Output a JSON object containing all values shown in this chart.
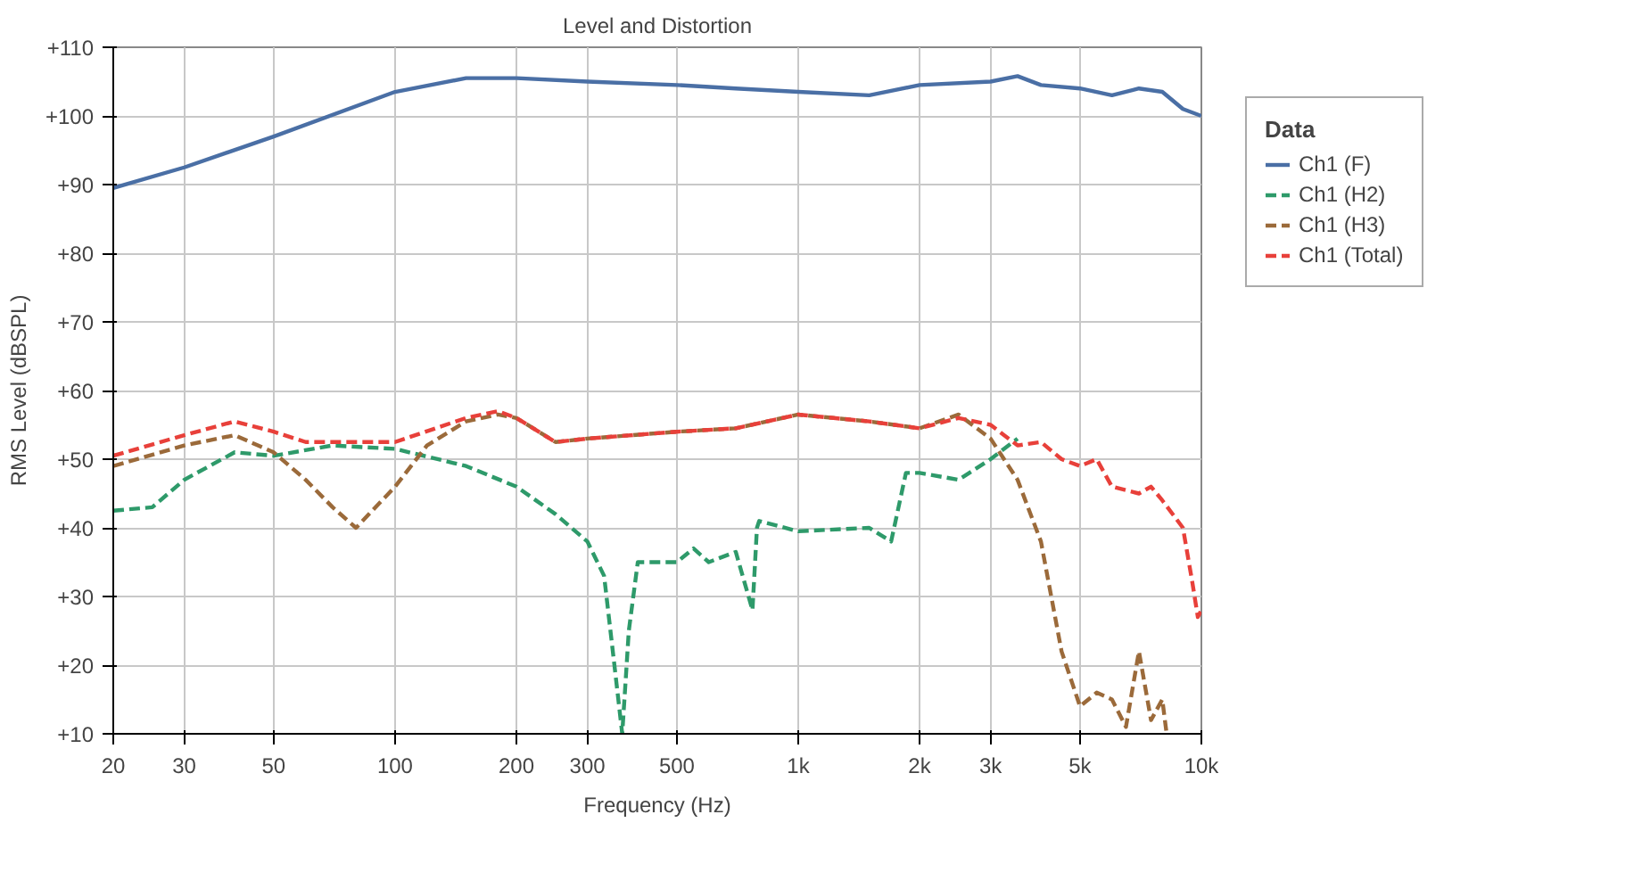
{
  "chart_data": {
    "type": "line",
    "title": "Level and Distortion",
    "xlabel": "Frequency (Hz)",
    "ylabel": "RMS Level (dBSPL)",
    "log": "x",
    "grid": true,
    "legend": "top right",
    "legend_title": "Data",
    "xlim": [
      20,
      10000
    ],
    "xticks": [
      20,
      30,
      50,
      100,
      200,
      300,
      500,
      {
        "value": 1000,
        "label": "1k"
      },
      {
        "value": 2000,
        "label": "2k"
      },
      {
        "value": 3000,
        "label": "3k"
      },
      {
        "value": 5000,
        "label": "5k"
      },
      {
        "value": 10000,
        "label": "10k"
      }
    ],
    "ylim": [
      10,
      110
    ],
    "yticks": [
      {
        "value": 10,
        "label": "+10"
      },
      {
        "value": 20,
        "label": "+20"
      },
      {
        "value": 30,
        "label": "+30"
      },
      {
        "value": 40,
        "label": "+40"
      },
      {
        "value": 50,
        "label": "+50"
      },
      {
        "value": 60,
        "label": "+60"
      },
      {
        "value": 70,
        "label": "+70"
      },
      {
        "value": 80,
        "label": "+80"
      },
      {
        "value": 90,
        "label": "+90"
      },
      {
        "value": 100,
        "label": "+100"
      },
      {
        "value": 110,
        "label": "+110"
      }
    ],
    "series": [
      {
        "name": "Ch1 (F)",
        "color": "#4a6fa5",
        "line_style": "solid",
        "x": [
          20,
          30,
          50,
          100,
          150,
          200,
          300,
          500,
          700,
          1000,
          1500,
          2000,
          3000,
          3500,
          4000,
          5000,
          6000,
          7000,
          8000,
          9000,
          10000
        ],
        "values": [
          89.5,
          92.5,
          97,
          103.5,
          105.5,
          105.5,
          105,
          104.5,
          104,
          103.5,
          103,
          104.5,
          105,
          105.8,
          104.5,
          104,
          103,
          104,
          103.5,
          101,
          100
        ]
      },
      {
        "name": "Ch1 (H2)",
        "color": "#2e9a6a",
        "line_style": "dashed",
        "x": [
          20,
          25,
          30,
          40,
          50,
          70,
          100,
          150,
          200,
          250,
          300,
          330,
          350,
          366,
          380,
          400,
          500,
          550,
          600,
          700,
          770,
          790,
          800,
          1000,
          1500,
          1700,
          1850,
          2000,
          2500,
          3000,
          3500
        ],
        "values": [
          42.5,
          43,
          47,
          51,
          50.5,
          52,
          51.5,
          49,
          46,
          42,
          38,
          33,
          20,
          10,
          25,
          35,
          35,
          37,
          35,
          36.5,
          28,
          40,
          41,
          39.5,
          40,
          38,
          48,
          48,
          47,
          50,
          53
        ]
      },
      {
        "name": "Ch1 (H3)",
        "color": "#9b6a3a",
        "line_style": "dashed",
        "x": [
          20,
          30,
          40,
          50,
          60,
          70,
          80,
          100,
          120,
          150,
          180,
          200,
          250,
          300,
          500,
          700,
          1000,
          1500,
          2000,
          2500,
          3000,
          3500,
          4000,
          4500,
          5000,
          5500,
          6000,
          6500,
          7000,
          7500,
          8000,
          8200
        ],
        "values": [
          49,
          52,
          53.5,
          51,
          47,
          43,
          40,
          46,
          52,
          55.5,
          56.5,
          56,
          52.5,
          53,
          54,
          54.5,
          56.5,
          55.5,
          54.5,
          56.5,
          53,
          47,
          38,
          22,
          14,
          16,
          15,
          11,
          22,
          12,
          15,
          10
        ]
      },
      {
        "name": "Ch1 (Total)",
        "color": "#e8403a",
        "line_style": "dashed",
        "x": [
          20,
          30,
          40,
          50,
          60,
          70,
          100,
          150,
          180,
          200,
          250,
          300,
          500,
          700,
          1000,
          1500,
          2000,
          2500,
          3000,
          3500,
          4000,
          4500,
          5000,
          5500,
          6000,
          7000,
          7500,
          8000,
          9000,
          9500,
          9800,
          10000
        ],
        "values": [
          50.5,
          53.5,
          55.5,
          54,
          52.5,
          52.5,
          52.5,
          56,
          57,
          56,
          52.5,
          53,
          54,
          54.5,
          56.5,
          55.5,
          54.5,
          56,
          55,
          52,
          52.5,
          50,
          49,
          50,
          46,
          45,
          46,
          44,
          40,
          32,
          27,
          28
        ]
      }
    ]
  }
}
